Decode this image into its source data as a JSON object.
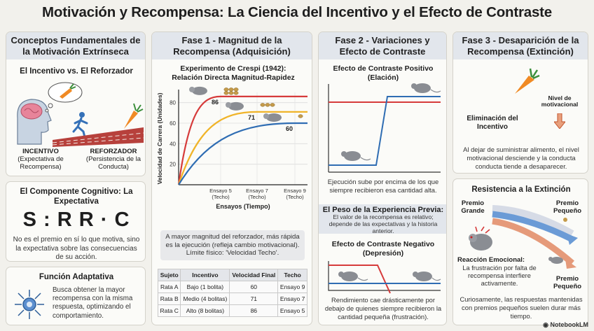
{
  "title": "Motivación y Recompensa: La Ciencia del Incentivo y el Efecto de Contraste",
  "col1": {
    "header": "Conceptos Fundamentales de la Motivación Extrínseca",
    "section1_title": "El Incentivo vs. El Reforzador",
    "incentivo_title": "INCENTIVO",
    "incentivo_desc": "(Expectativa de Recompensa)",
    "reforzador_title": "REFORZADOR",
    "reforzador_desc": "(Persistencia de la Conducta)",
    "section2_title": "El Componente Cognitivo: La Expectativa",
    "formula": "S : R R · C",
    "section2_text": "No es el premio en sí lo que motiva, sino la expectativa sobre las consecuencias de su acción.",
    "section3_title": "Función Adaptativa",
    "section3_text": "Busca obtener la mayor recompensa con la misma respuesta, optimizando el comportamiento."
  },
  "col2": {
    "header": "Fase 1 - Magnitud de la Recompensa (Adquisición)",
    "chart_title": "Experimento de Crespi (1942): Relación Directa Magnitud-Rapidez",
    "caption": "A mayor magnitud del reforzador, más rápida es la ejecución (refleja cambio motivacional). Límite físico: 'Velocidad Techo'.",
    "table": {
      "headers": [
        "Sujeto",
        "Incentivo",
        "Velocidad Final",
        "Techo"
      ],
      "rows": [
        [
          "Rata A",
          "Bajo (1 bolita)",
          "60",
          "Ensayo 9"
        ],
        [
          "Rata B",
          "Medio (4 bolitas)",
          "71",
          "Ensayo 7"
        ],
        [
          "Rata C",
          "Alto (8 bolitas)",
          "86",
          "Ensayo 5"
        ]
      ]
    }
  },
  "chart_data": {
    "type": "line",
    "title": "Experimento de Crespi (1942): Relación Directa Magnitud-Rapidez",
    "xlabel": "Ensayos (Tiempo)",
    "ylabel": "Velocidad de Carrera (Unidades)",
    "ylim": [
      0,
      90
    ],
    "yticks": [
      20,
      40,
      60,
      80
    ],
    "xticks": [
      "Ensayo 5 (Techo)",
      "Ensayo 7 (Techo)",
      "Ensayo 9 (Techo)"
    ],
    "grid": true,
    "series": [
      {
        "name": "Rata C",
        "color": "#d63b3b",
        "ceiling": 86,
        "ceiling_trial": 5,
        "label": "86"
      },
      {
        "name": "Rata B",
        "color": "#f0b429",
        "ceiling": 71,
        "ceiling_trial": 7,
        "label": "71"
      },
      {
        "name": "Rata A",
        "color": "#2f6db3",
        "ceiling": 60,
        "ceiling_trial": 9,
        "label": "60"
      }
    ]
  },
  "col3": {
    "header": "Fase 2 - Variaciones y Efecto de Contraste",
    "pos_title": "Efecto de Contraste Positivo (Elación)",
    "pos_text": "Ejecución sube por encima de los que siempre recibieron esa cantidad alta.",
    "peso_title": "El Peso de la Experiencia Previa:",
    "peso_text": "El valor de la recompensa es relativo; depende de las expectativas y la historia anterior.",
    "neg_title": "Efecto de Contraste Negativo (Depresión)",
    "neg_text": "Rendimiento cae drásticamente por debajo de quienes siempre recibieron la cantidad pequeña (frustración)."
  },
  "col4": {
    "header": "Fase 3 - Desaparición de la Recompensa (Extinción)",
    "nivel_label": "Nivel de motivacional",
    "elim_label": "Eliminación del Incentivo",
    "ext_text": "Al dejar de suministrar alimento, el nivel motivacional desciende y la conducta conducta tiende a desaparecer.",
    "res_title": "Resistencia a la Extinción",
    "premio_grande": "Premio Grande",
    "premio_pequeno_1": "Premio Pequeño",
    "premio_pequeno_2": "Premio Pequeño",
    "reaccion_title": "Reacción Emocional:",
    "reaccion_text": "La frustración por falta de recompensa interfiere activamente.",
    "res_text": "Curiosamente, las respuestas mantenidas con premios pequeños suelen durar más tiempo."
  },
  "footer": "NotebookLM",
  "colors": {
    "red": "#d63b3b",
    "blue": "#2f6db3",
    "yellow": "#f0b429",
    "header_bg": "#e2e6ec"
  }
}
